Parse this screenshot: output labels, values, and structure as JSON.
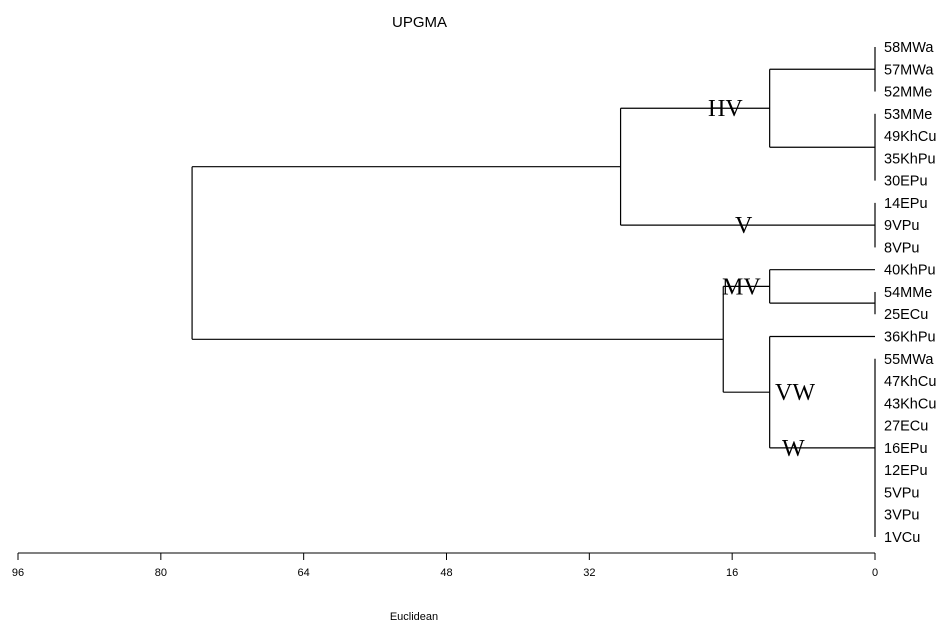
{
  "chart_data": {
    "type": "dendrogram",
    "title": "UPGMA",
    "xlabel": "Euclidean",
    "x_axis": {
      "ticks": [
        96,
        80,
        64,
        48,
        32,
        16,
        0
      ],
      "range": [
        96,
        0
      ],
      "reversed": true
    },
    "leaves": [
      "58MWa",
      "57MWa",
      "52MMe",
      "53MMe",
      "49KhCu",
      "35KhPu",
      "30EPu",
      "14EPu",
      "9VPu",
      "8VPu",
      "40KhPu",
      "54MMe",
      "25ECu",
      "36KhPu",
      "55MWa",
      "47KhCu",
      "43KhCu",
      "27ECu",
      "16EPu",
      "12EPu",
      "5VPu",
      "3VPu",
      "1VCu"
    ],
    "merges": [
      {
        "id": "c1",
        "height": 0,
        "members": [
          "58MWa",
          "57MWa",
          "52MMe"
        ]
      },
      {
        "id": "c2",
        "height": 0,
        "members": [
          "53MMe",
          "49KhCu",
          "35KhPu",
          "30EPu"
        ]
      },
      {
        "id": "HVc",
        "height": 11.8,
        "members": [
          "c1",
          "c2"
        ]
      },
      {
        "id": "Vc",
        "height": 0,
        "members": [
          "14EPu",
          "9VPu",
          "8VPu"
        ]
      },
      {
        "id": "HVV",
        "height": 28.5,
        "members": [
          "HVc",
          "Vc"
        ]
      },
      {
        "id": "c3",
        "height": 0,
        "members": [
          "54MMe",
          "25ECu"
        ]
      },
      {
        "id": "MVc",
        "height": 11.8,
        "members": [
          "40KhPu",
          "c3"
        ]
      },
      {
        "id": "Wc",
        "height": 0,
        "members": [
          "55MWa",
          "47KhCu",
          "43KhCu",
          "27ECu",
          "16EPu",
          "12EPu",
          "5VPu",
          "3VPu",
          "1VCu"
        ]
      },
      {
        "id": "VWc",
        "height": 11.8,
        "members": [
          "36KhPu",
          "Wc"
        ]
      },
      {
        "id": "MVVW",
        "height": 17.0,
        "members": [
          "MVc",
          "VWc"
        ]
      },
      {
        "id": "root",
        "height": 76.5,
        "members": [
          "HVV",
          "MVVW"
        ]
      }
    ],
    "cluster_labels": [
      {
        "text": "HV",
        "cluster": "HVc"
      },
      {
        "text": "V",
        "cluster": "Vc"
      },
      {
        "text": "MV",
        "cluster": "MVc"
      },
      {
        "text": "VW",
        "cluster": "VWc"
      },
      {
        "text": "W",
        "cluster": "Wc"
      }
    ]
  }
}
